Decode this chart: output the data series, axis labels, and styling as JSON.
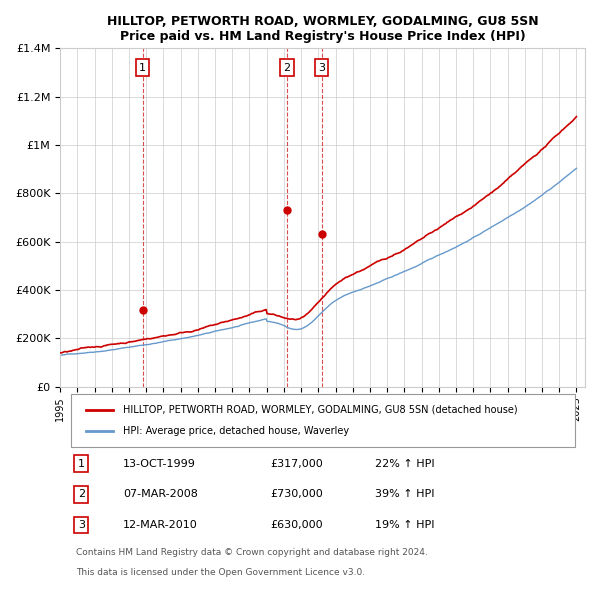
{
  "title": "HILLTOP, PETWORTH ROAD, WORMLEY, GODALMING, GU8 5SN",
  "subtitle": "Price paid vs. HM Land Registry's House Price Index (HPI)",
  "red_label": "HILLTOP, PETWORTH ROAD, WORMLEY, GODALMING, GU8 5SN (detached house)",
  "blue_label": "HPI: Average price, detached house, Waverley",
  "ylim": [
    0,
    1400000
  ],
  "yticks": [
    0,
    200000,
    400000,
    600000,
    800000,
    1000000,
    1200000,
    1400000
  ],
  "ytick_labels": [
    "£0",
    "£200K",
    "£400K",
    "£600K",
    "£800K",
    "£1M",
    "£1.2M",
    "£1.4M"
  ],
  "sale_events": [
    {
      "num": 1,
      "year": 1999.79,
      "price": 317000,
      "date": "13-OCT-1999",
      "pct": "22%",
      "dir": "↑"
    },
    {
      "num": 2,
      "year": 2008.17,
      "price": 730000,
      "date": "07-MAR-2008",
      "pct": "39%",
      "dir": "↑"
    },
    {
      "num": 3,
      "year": 2010.19,
      "price": 630000,
      "date": "12-MAR-2010",
      "pct": "19%",
      "dir": "↑"
    }
  ],
  "footer1": "Contains HM Land Registry data © Crown copyright and database right 2024.",
  "footer2": "This data is licensed under the Open Government Licence v3.0.",
  "red_color": "#cc0000",
  "blue_color": "#6699cc",
  "vline_color": "#cc0000",
  "bg_color": "#ffffff",
  "grid_color": "#cccccc"
}
